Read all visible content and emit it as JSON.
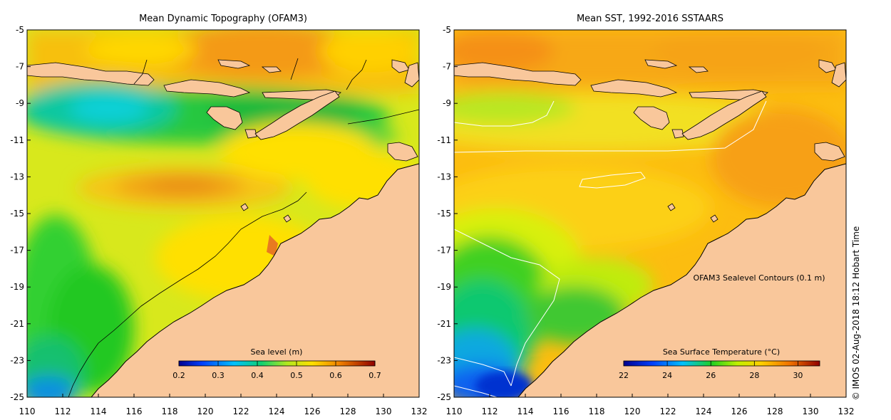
{
  "panels": [
    {
      "title": "Mean Dynamic Topography (OFAM3)",
      "colorbar": {
        "label": "Sea level (m)",
        "ticks": [
          "0.2",
          "0.3",
          "0.4",
          "0.5",
          "0.6",
          "0.7"
        ]
      }
    },
    {
      "title": "Mean SST, 1992-2016 SSTAARS",
      "annotation": "OFAM3 Sealevel Contours (0.1 m)",
      "colorbar": {
        "label": "Sea Surface Temperature (°C)",
        "ticks": [
          "22",
          "24",
          "26",
          "28",
          "30"
        ]
      }
    }
  ],
  "axes": {
    "x_ticks": [
      "110",
      "112",
      "114",
      "116",
      "118",
      "120",
      "122",
      "124",
      "126",
      "128",
      "130",
      "132"
    ],
    "y_ticks": [
      "-5",
      "-7",
      "-9",
      "-11",
      "-13",
      "-15",
      "-17",
      "-19",
      "-21",
      "-23",
      "-25"
    ]
  },
  "credit": "© IMOS 02-Aug-2018 18:12 Hobart Time",
  "colors": {
    "land": "#f9c79b",
    "jet": [
      "#00008f",
      "#0040ff",
      "#00c0ff",
      "#10d080",
      "#20d020",
      "#a0e020",
      "#ffe000",
      "#ffb000",
      "#f08000",
      "#d04000",
      "#900000"
    ]
  }
}
